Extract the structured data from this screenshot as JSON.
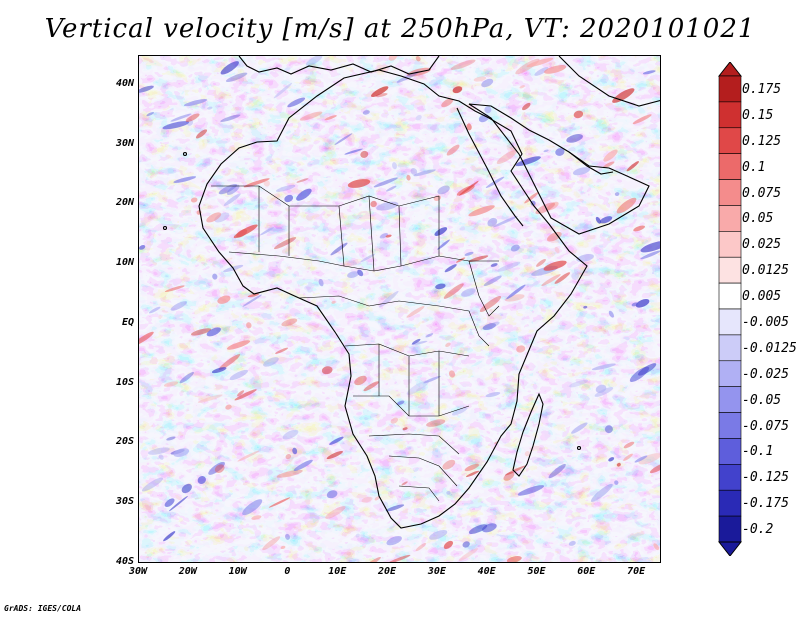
{
  "title": "Vertical velocity [m/s] at 250hPa, VT: 2020101021",
  "footer": "GrADS: IGES/COLA",
  "map": {
    "variable": "vertical velocity",
    "units": "m/s",
    "level": "250hPa",
    "valid_time": "2020101021",
    "lon_range": [
      -30,
      75
    ],
    "lat_range": [
      -40,
      45
    ],
    "lon_ticks": [
      "30W",
      "20W",
      "10W",
      "0",
      "10E",
      "20E",
      "30E",
      "40E",
      "50E",
      "60E",
      "70E"
    ],
    "lat_ticks": [
      "40N",
      "30N",
      "20N",
      "10N",
      "EQ",
      "10S",
      "20S",
      "30S",
      "40S"
    ],
    "land_outline_color": "#000000"
  },
  "colorbar": {
    "labels": [
      "0.175",
      "0.15",
      "0.125",
      "0.1",
      "0.075",
      "0.05",
      "0.025",
      "0.0125",
      "0.005",
      "-0.005",
      "-0.0125",
      "-0.025",
      "-0.05",
      "-0.075",
      "-0.1",
      "-0.125",
      "-0.175",
      "-0.2"
    ],
    "colors": [
      "#b41e1e",
      "#cf3030",
      "#e04848",
      "#ec6a6a",
      "#f48c8c",
      "#f9aaaa",
      "#fcc8c8",
      "#fde2e2",
      "#ffffff",
      "#e6e6fc",
      "#ccccf8",
      "#b0b0f4",
      "#9494ee",
      "#7a7ae6",
      "#5e5edc",
      "#4242cc",
      "#2a2ab6",
      "#1a1a9a"
    ]
  }
}
